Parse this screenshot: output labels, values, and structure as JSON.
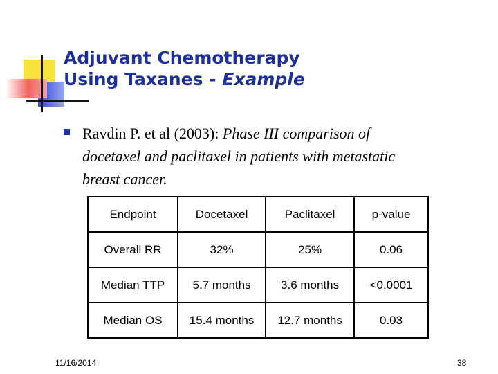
{
  "slide": {
    "title_line1": "Adjuvant Chemotherapy",
    "title_line2": "Using Taxanes - ",
    "title_line2_emphasis": "Example",
    "bullet_citation": "Ravdin P. et al (2003): ",
    "bullet_description": "Phase III comparison of docetaxel and paclitaxel in patients with metastatic breast cancer.",
    "date": "11/16/2014",
    "page_number": "38",
    "colors": {
      "title": "#1d2f9e",
      "bullet": "#2133a8",
      "deco_yellow": "#f7e33a",
      "deco_blue": "#3347d6",
      "deco_red": "#f25b5b"
    }
  },
  "table": {
    "headers": [
      "Endpoint",
      "Docetaxel",
      "Paclitaxel",
      "p-value"
    ],
    "rows": [
      [
        "Overall RR",
        "32%",
        "25%",
        "0.06"
      ],
      [
        "Median TTP",
        "5.7 months",
        "3.6 months",
        "<0.0001"
      ],
      [
        "Median OS",
        "15.4 months",
        "12.7 months",
        "0.03"
      ]
    ]
  }
}
